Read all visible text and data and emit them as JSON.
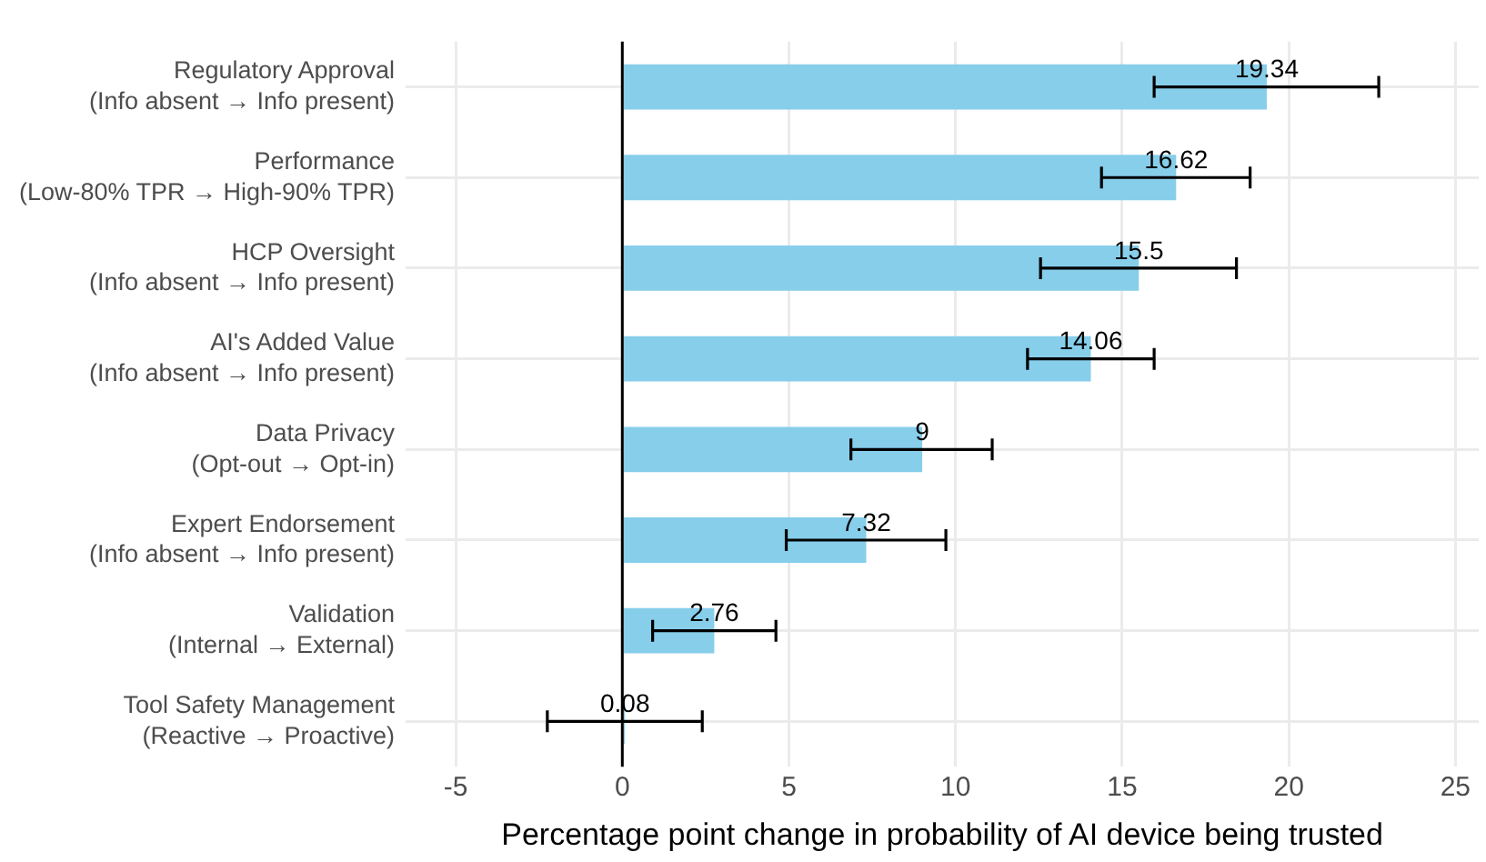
{
  "chart_data": {
    "type": "bar",
    "orientation": "horizontal",
    "xlabel": "Percentage point change in probability of AI device being trusted",
    "categories": [
      "Regulatory Approval\n(Info absent → Info present)",
      "Performance\n(Low-80% TPR → High-90% TPR)",
      "HCP Oversight\n(Info absent → Info present)",
      "AI's Added Value\n(Info absent → Info present)",
      "Data Privacy\n(Opt-out → Opt-in)",
      "Expert Endorsement\n(Info absent → Info present)",
      "Validation\n(Internal → External)",
      "Tool Safety Management\n(Reactive → Proactive)"
    ],
    "values": [
      19.34,
      16.62,
      15.5,
      14.06,
      9,
      7.32,
      2.76,
      0.08
    ],
    "errors": [
      [
        15.96,
        22.7
      ],
      [
        14.38,
        18.84
      ],
      [
        12.55,
        18.43
      ],
      [
        12.16,
        15.96
      ],
      [
        6.86,
        11.1
      ],
      [
        4.92,
        9.71
      ],
      [
        0.91,
        4.61
      ],
      [
        -2.25,
        2.4
      ]
    ],
    "color": "#87ceeb",
    "data_labels": true,
    "xlim": [
      -6.5,
      25.7
    ],
    "xticks": [
      -5,
      0,
      5,
      10,
      15,
      20,
      25
    ],
    "ref_lines": [
      {
        "axis": "x",
        "value": 0,
        "color": "#000000"
      }
    ],
    "grid": true,
    "legend": false
  }
}
